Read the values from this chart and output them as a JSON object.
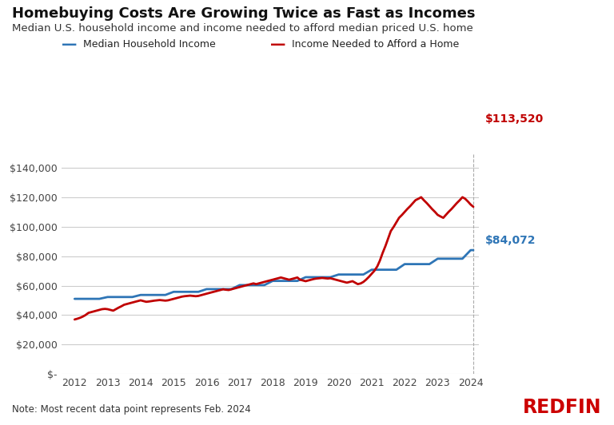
{
  "title": "Homebuying Costs Are Growing Twice as Fast as Incomes",
  "subtitle": "Median U.S. household income and income needed to afford median priced U.S. home",
  "note": "Note: Most recent data point represents Feb. 2024",
  "redfin_text": "REDFIN",
  "line1_label": "Median Household Income",
  "line2_label": "Income Needed to Afford a Home",
  "line1_color": "#2E75B6",
  "line2_color": "#C00000",
  "end_label1": "$84,072",
  "end_label2": "$113,520",
  "end_label1_color": "#2E75B6",
  "end_label2_color": "#C00000",
  "ylim": [
    0,
    150000
  ],
  "yticks": [
    0,
    20000,
    40000,
    60000,
    80000,
    100000,
    120000,
    140000
  ],
  "ytick_labels": [
    "$-",
    "$20,000",
    "$40,000",
    "$60,000",
    "$80,000",
    "$100,000",
    "$120,000",
    "$140,000"
  ],
  "xticks": [
    2012,
    2013,
    2014,
    2015,
    2016,
    2017,
    2018,
    2019,
    2020,
    2021,
    2022,
    2023,
    2024
  ],
  "background_color": "#FFFFFF",
  "grid_color": "#CCCCCC",
  "vline_x": 2024.08,
  "median_income": [
    [
      2012.0,
      51017
    ],
    [
      2012.25,
      51017
    ],
    [
      2012.5,
      51017
    ],
    [
      2012.75,
      51017
    ],
    [
      2013.0,
      52250
    ],
    [
      2013.25,
      52250
    ],
    [
      2013.5,
      52250
    ],
    [
      2013.75,
      52250
    ],
    [
      2014.0,
      53657
    ],
    [
      2014.25,
      53657
    ],
    [
      2014.5,
      53657
    ],
    [
      2014.75,
      53657
    ],
    [
      2015.0,
      55775
    ],
    [
      2015.25,
      55775
    ],
    [
      2015.5,
      55775
    ],
    [
      2015.75,
      55775
    ],
    [
      2016.0,
      57617
    ],
    [
      2016.25,
      57617
    ],
    [
      2016.5,
      57617
    ],
    [
      2016.75,
      57617
    ],
    [
      2017.0,
      60336
    ],
    [
      2017.25,
      60336
    ],
    [
      2017.5,
      60336
    ],
    [
      2017.75,
      60336
    ],
    [
      2018.0,
      63179
    ],
    [
      2018.25,
      63179
    ],
    [
      2018.5,
      63179
    ],
    [
      2018.75,
      63179
    ],
    [
      2019.0,
      65712
    ],
    [
      2019.25,
      65712
    ],
    [
      2019.5,
      65712
    ],
    [
      2019.75,
      65712
    ],
    [
      2020.0,
      67521
    ],
    [
      2020.25,
      67521
    ],
    [
      2020.5,
      67521
    ],
    [
      2020.75,
      67521
    ],
    [
      2021.0,
      70784
    ],
    [
      2021.25,
      70784
    ],
    [
      2021.5,
      70784
    ],
    [
      2021.75,
      70784
    ],
    [
      2022.0,
      74580
    ],
    [
      2022.25,
      74580
    ],
    [
      2022.5,
      74580
    ],
    [
      2022.75,
      74580
    ],
    [
      2023.0,
      78250
    ],
    [
      2023.25,
      78250
    ],
    [
      2023.5,
      78250
    ],
    [
      2023.75,
      78250
    ],
    [
      2024.0,
      84072
    ],
    [
      2024.08,
      84072
    ]
  ],
  "income_needed": [
    [
      2012.0,
      37000
    ],
    [
      2012.08,
      37500
    ],
    [
      2012.17,
      38200
    ],
    [
      2012.25,
      39000
    ],
    [
      2012.33,
      40000
    ],
    [
      2012.42,
      41500
    ],
    [
      2012.5,
      42000
    ],
    [
      2012.58,
      42500
    ],
    [
      2012.67,
      43000
    ],
    [
      2012.75,
      43500
    ],
    [
      2012.83,
      44000
    ],
    [
      2012.92,
      44200
    ],
    [
      2013.0,
      44000
    ],
    [
      2013.08,
      43500
    ],
    [
      2013.17,
      43000
    ],
    [
      2013.25,
      44000
    ],
    [
      2013.33,
      45000
    ],
    [
      2013.42,
      46000
    ],
    [
      2013.5,
      47000
    ],
    [
      2013.58,
      47500
    ],
    [
      2013.67,
      48000
    ],
    [
      2013.75,
      48500
    ],
    [
      2013.83,
      49000
    ],
    [
      2013.92,
      49500
    ],
    [
      2014.0,
      50000
    ],
    [
      2014.08,
      49500
    ],
    [
      2014.17,
      49000
    ],
    [
      2014.25,
      49200
    ],
    [
      2014.33,
      49500
    ],
    [
      2014.42,
      49800
    ],
    [
      2014.5,
      50000
    ],
    [
      2014.58,
      50200
    ],
    [
      2014.67,
      50000
    ],
    [
      2014.75,
      49800
    ],
    [
      2014.83,
      50000
    ],
    [
      2014.92,
      50500
    ],
    [
      2015.0,
      51000
    ],
    [
      2015.08,
      51500
    ],
    [
      2015.17,
      52000
    ],
    [
      2015.25,
      52500
    ],
    [
      2015.33,
      52800
    ],
    [
      2015.42,
      53000
    ],
    [
      2015.5,
      53200
    ],
    [
      2015.58,
      53000
    ],
    [
      2015.67,
      52800
    ],
    [
      2015.75,
      53000
    ],
    [
      2015.83,
      53500
    ],
    [
      2015.92,
      54000
    ],
    [
      2016.0,
      54500
    ],
    [
      2016.08,
      55000
    ],
    [
      2016.17,
      55500
    ],
    [
      2016.25,
      56000
    ],
    [
      2016.33,
      56500
    ],
    [
      2016.42,
      57000
    ],
    [
      2016.5,
      57500
    ],
    [
      2016.58,
      57200
    ],
    [
      2016.67,
      57000
    ],
    [
      2016.75,
      57500
    ],
    [
      2016.83,
      58000
    ],
    [
      2016.92,
      58500
    ],
    [
      2017.0,
      59000
    ],
    [
      2017.08,
      59500
    ],
    [
      2017.17,
      60000
    ],
    [
      2017.25,
      60500
    ],
    [
      2017.33,
      61000
    ],
    [
      2017.42,
      61500
    ],
    [
      2017.5,
      61000
    ],
    [
      2017.58,
      61500
    ],
    [
      2017.67,
      62000
    ],
    [
      2017.75,
      62500
    ],
    [
      2017.83,
      63000
    ],
    [
      2017.92,
      63500
    ],
    [
      2018.0,
      64000
    ],
    [
      2018.08,
      64500
    ],
    [
      2018.17,
      65000
    ],
    [
      2018.25,
      65500
    ],
    [
      2018.33,
      65000
    ],
    [
      2018.42,
      64500
    ],
    [
      2018.5,
      64000
    ],
    [
      2018.58,
      64500
    ],
    [
      2018.67,
      65000
    ],
    [
      2018.75,
      65500
    ],
    [
      2018.83,
      64000
    ],
    [
      2018.92,
      63500
    ],
    [
      2019.0,
      63000
    ],
    [
      2019.08,
      63500
    ],
    [
      2019.17,
      64000
    ],
    [
      2019.25,
      64500
    ],
    [
      2019.33,
      64800
    ],
    [
      2019.42,
      65000
    ],
    [
      2019.5,
      65200
    ],
    [
      2019.58,
      65000
    ],
    [
      2019.67,
      64800
    ],
    [
      2019.75,
      65000
    ],
    [
      2019.83,
      64500
    ],
    [
      2019.92,
      64000
    ],
    [
      2020.0,
      63500
    ],
    [
      2020.08,
      63000
    ],
    [
      2020.17,
      62500
    ],
    [
      2020.25,
      62000
    ],
    [
      2020.33,
      62500
    ],
    [
      2020.42,
      63000
    ],
    [
      2020.5,
      62000
    ],
    [
      2020.58,
      61000
    ],
    [
      2020.67,
      61500
    ],
    [
      2020.75,
      62500
    ],
    [
      2020.83,
      64000
    ],
    [
      2020.92,
      66000
    ],
    [
      2021.0,
      68000
    ],
    [
      2021.08,
      70000
    ],
    [
      2021.17,
      73000
    ],
    [
      2021.25,
      77000
    ],
    [
      2021.33,
      82000
    ],
    [
      2021.42,
      87000
    ],
    [
      2021.5,
      92000
    ],
    [
      2021.58,
      97000
    ],
    [
      2021.67,
      100000
    ],
    [
      2021.75,
      103000
    ],
    [
      2021.83,
      106000
    ],
    [
      2021.92,
      108000
    ],
    [
      2022.0,
      110000
    ],
    [
      2022.08,
      112000
    ],
    [
      2022.17,
      114000
    ],
    [
      2022.25,
      116000
    ],
    [
      2022.33,
      118000
    ],
    [
      2022.42,
      119000
    ],
    [
      2022.5,
      120000
    ],
    [
      2022.58,
      118000
    ],
    [
      2022.67,
      116000
    ],
    [
      2022.75,
      114000
    ],
    [
      2022.83,
      112000
    ],
    [
      2022.92,
      110000
    ],
    [
      2023.0,
      108000
    ],
    [
      2023.08,
      107000
    ],
    [
      2023.17,
      106000
    ],
    [
      2023.25,
      108000
    ],
    [
      2023.33,
      110000
    ],
    [
      2023.42,
      112000
    ],
    [
      2023.5,
      114000
    ],
    [
      2023.58,
      116000
    ],
    [
      2023.67,
      118000
    ],
    [
      2023.75,
      120000
    ],
    [
      2023.83,
      119000
    ],
    [
      2023.92,
      117000
    ],
    [
      2024.0,
      115000
    ],
    [
      2024.08,
      113520
    ]
  ]
}
